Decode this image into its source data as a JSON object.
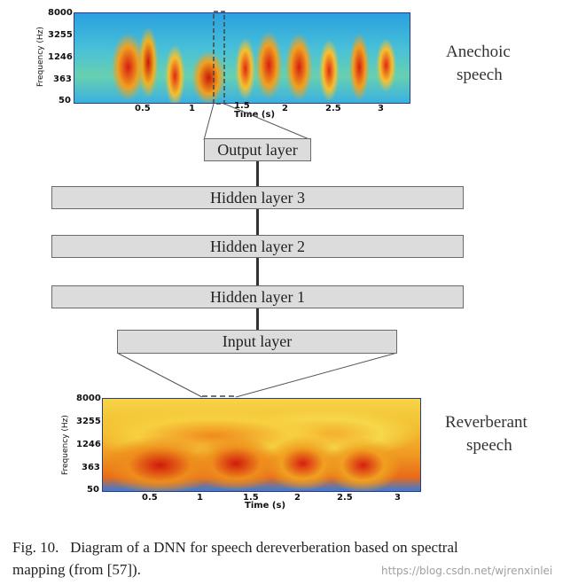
{
  "top_spectrogram": {
    "y_ticks": [
      "8000",
      "3255",
      "1246",
      "363",
      "50"
    ],
    "x_ticks": [
      "0.5",
      "1",
      "1.5",
      "2",
      "2.5",
      "3"
    ],
    "y_label": "Frequency (Hz)",
    "x_label": "Time (s)",
    "side_label_line1": "Anechoic",
    "side_label_line2": "speech"
  },
  "layers": {
    "output": "Output layer",
    "hidden3": "Hidden layer 3",
    "hidden2": "Hidden layer 2",
    "hidden1": "Hidden layer 1",
    "input": "Input layer"
  },
  "bottom_spectrogram": {
    "y_ticks": [
      "8000",
      "3255",
      "1246",
      "363",
      "50"
    ],
    "x_ticks": [
      "0.5",
      "1",
      "1.5",
      "2",
      "2.5",
      "3"
    ],
    "y_label": "Frequency (Hz)",
    "x_label": "Time (s)",
    "side_label_line1": "Reverberant",
    "side_label_line2": "speech"
  },
  "caption": {
    "line1": "Fig. 10.   Diagram of a DNN for speech dereverberation based on spectral",
    "line2": "mapping (from [57])."
  },
  "watermark": "https://blog.csdn.net/wjrenxinlei"
}
